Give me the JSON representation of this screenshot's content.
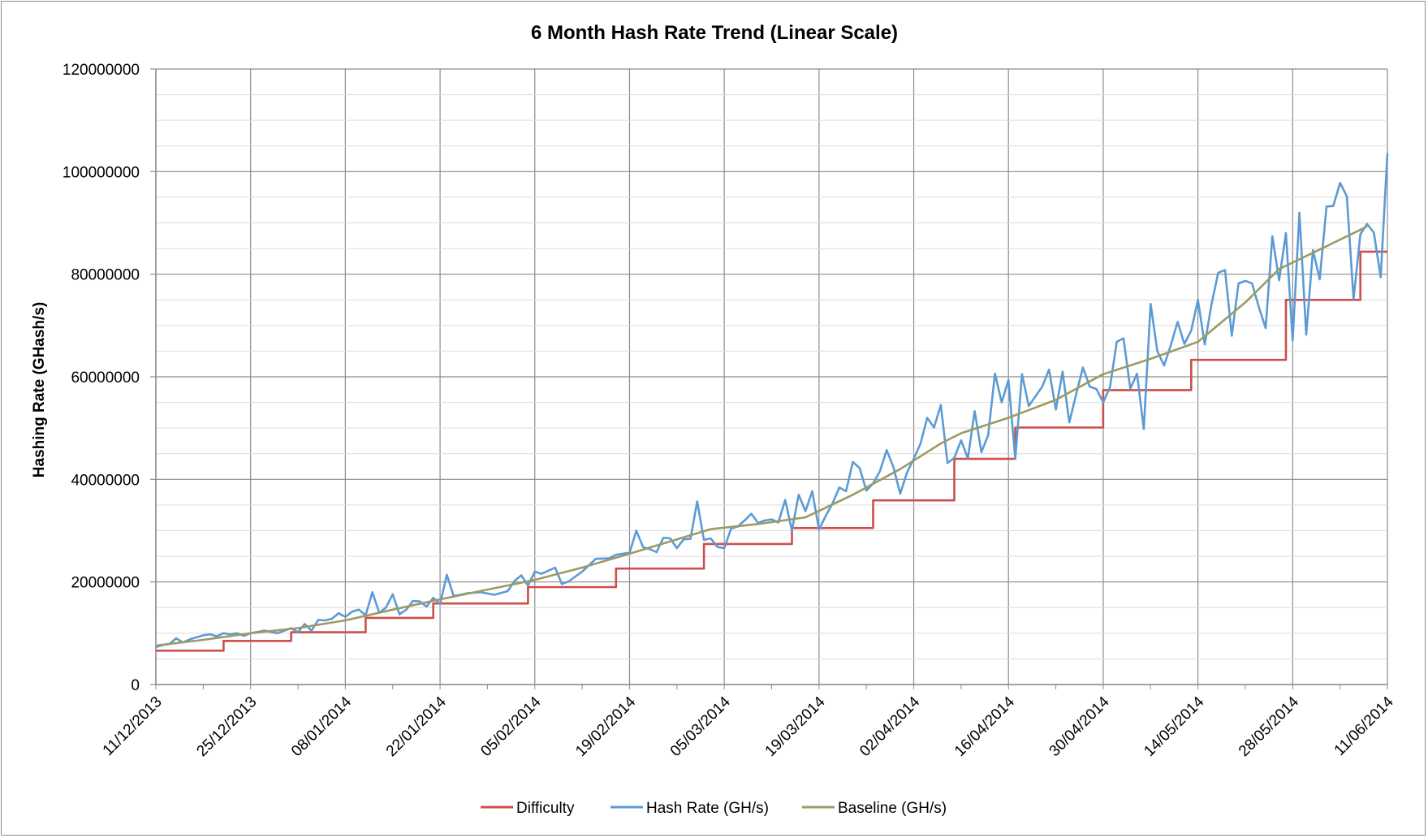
{
  "chart_data": {
    "type": "line",
    "title": "6 Month Hash Rate Trend (Linear Scale)",
    "ylabel": "Hashing Rate (GHash/s)",
    "xlabel": "",
    "ylim": [
      0,
      120000000
    ],
    "y_ticks": [
      "0",
      "20000000",
      "40000000",
      "60000000",
      "80000000",
      "100000000",
      "120000000"
    ],
    "x_range": [
      "2013-12-11",
      "2014-06-11"
    ],
    "x_tick_dates": [
      "2013-12-11",
      "2013-12-25",
      "2014-01-08",
      "2014-01-22",
      "2014-02-05",
      "2014-02-19",
      "2014-03-05",
      "2014-03-19",
      "2014-04-02",
      "2014-04-16",
      "2014-04-30",
      "2014-05-14",
      "2014-05-28",
      "2014-06-11"
    ],
    "x_tick_labels": [
      "11/12/2013",
      "25/12/2013",
      "08/01/2014",
      "22/01/2014",
      "05/02/2014",
      "19/02/2014",
      "05/03/2014",
      "19/03/2014",
      "02/04/2014",
      "16/04/2014",
      "30/04/2014",
      "14/05/2014",
      "28/05/2014",
      "11/06/2014"
    ],
    "grid": true,
    "legend_position": "bottom",
    "series": [
      {
        "name": "Difficulty",
        "color": "#cc4f4b",
        "step": true,
        "x": [
          "2013-12-11",
          "2013-12-21",
          "2013-12-31",
          "2014-01-11",
          "2014-01-21",
          "2014-02-04",
          "2014-02-17",
          "2014-03-02",
          "2014-03-15",
          "2014-03-27",
          "2014-04-08",
          "2014-04-17",
          "2014-04-30",
          "2014-05-13",
          "2014-05-27",
          "2014-06-07",
          "2014-06-11"
        ],
        "values": [
          6600000,
          8500000,
          10200000,
          13000000,
          15800000,
          19000000,
          22600000,
          27400000,
          30500000,
          35900000,
          44000000,
          50100000,
          57400000,
          63300000,
          75000000,
          84400000,
          84400000
        ]
      },
      {
        "name": "Hash Rate (GH/s)",
        "color": "#5b9bd5",
        "x": [
          "2013-12-11",
          "2013-12-12",
          "2013-12-13",
          "2013-12-14",
          "2013-12-15",
          "2013-12-16",
          "2013-12-17",
          "2013-12-18",
          "2013-12-19",
          "2013-12-20",
          "2013-12-21",
          "2013-12-22",
          "2013-12-23",
          "2013-12-24",
          "2013-12-25",
          "2013-12-27",
          "2013-12-29",
          "2013-12-31",
          "2014-01-01",
          "2014-01-02",
          "2014-01-03",
          "2014-01-04",
          "2014-01-05",
          "2014-01-06",
          "2014-01-07",
          "2014-01-08",
          "2014-01-09",
          "2014-01-10",
          "2014-01-11",
          "2014-01-12",
          "2014-01-13",
          "2014-01-14",
          "2014-01-15",
          "2014-01-16",
          "2014-01-17",
          "2014-01-18",
          "2014-01-19",
          "2014-01-20",
          "2014-01-21",
          "2014-01-22",
          "2014-01-23",
          "2014-01-24",
          "2014-01-25",
          "2014-01-26",
          "2014-01-28",
          "2014-01-30",
          "2014-02-01",
          "2014-02-02",
          "2014-02-03",
          "2014-02-04",
          "2014-02-05",
          "2014-02-06",
          "2014-02-08",
          "2014-02-09",
          "2014-02-10",
          "2014-02-12",
          "2014-02-14",
          "2014-02-16",
          "2014-02-17",
          "2014-02-19",
          "2014-02-20",
          "2014-02-21",
          "2014-02-22",
          "2014-02-23",
          "2014-02-24",
          "2014-02-25",
          "2014-02-26",
          "2014-02-27",
          "2014-02-28",
          "2014-03-01",
          "2014-03-02",
          "2014-03-03",
          "2014-03-04",
          "2014-03-05",
          "2014-03-06",
          "2014-03-07",
          "2014-03-08",
          "2014-03-09",
          "2014-03-10",
          "2014-03-11",
          "2014-03-12",
          "2014-03-13",
          "2014-03-14",
          "2014-03-15",
          "2014-03-16",
          "2014-03-17",
          "2014-03-18",
          "2014-03-19",
          "2014-03-20",
          "2014-03-21",
          "2014-03-22",
          "2014-03-23",
          "2014-03-24",
          "2014-03-25",
          "2014-03-26",
          "2014-03-27",
          "2014-03-28",
          "2014-03-29",
          "2014-03-30",
          "2014-03-31",
          "2014-04-01",
          "2014-04-02",
          "2014-04-03",
          "2014-04-04",
          "2014-04-05",
          "2014-04-06",
          "2014-04-07",
          "2014-04-08",
          "2014-04-09",
          "2014-04-10",
          "2014-04-11",
          "2014-04-12",
          "2014-04-13",
          "2014-04-14",
          "2014-04-15",
          "2014-04-16",
          "2014-04-17",
          "2014-04-18",
          "2014-04-19",
          "2014-04-21",
          "2014-04-22",
          "2014-04-23",
          "2014-04-24",
          "2014-04-25",
          "2014-04-26",
          "2014-04-27",
          "2014-04-28",
          "2014-04-29",
          "2014-04-30",
          "2014-05-01",
          "2014-05-02",
          "2014-05-03",
          "2014-05-04",
          "2014-05-05",
          "2014-05-06",
          "2014-05-07",
          "2014-05-08",
          "2014-05-09",
          "2014-05-10",
          "2014-05-11",
          "2014-05-12",
          "2014-05-13",
          "2014-05-14",
          "2014-05-15",
          "2014-05-16",
          "2014-05-17",
          "2014-05-18",
          "2014-05-19",
          "2014-05-20",
          "2014-05-21",
          "2014-05-22",
          "2014-05-23",
          "2014-05-24",
          "2014-05-25",
          "2014-05-26",
          "2014-05-27",
          "2014-05-28",
          "2014-05-29",
          "2014-05-30",
          "2014-05-31",
          "2014-06-01",
          "2014-06-02",
          "2014-06-03",
          "2014-06-04",
          "2014-06-05",
          "2014-06-06",
          "2014-06-07",
          "2014-06-08",
          "2014-06-09",
          "2014-06-10",
          "2014-06-11"
        ],
        "values": [
          7300000,
          7700000,
          7900000,
          9000000,
          8200000,
          8800000,
          9200000,
          9600000,
          9800000,
          9400000,
          10000000,
          9800000,
          10000000,
          9500000,
          10000000,
          10500000,
          10000000,
          11000000,
          10200000,
          11800000,
          10500000,
          12600000,
          12500000,
          12800000,
          13900000,
          13200000,
          14200000,
          14600000,
          13500000,
          18000000,
          14000000,
          15000000,
          17600000,
          13700000,
          14600000,
          16300000,
          16200000,
          15200000,
          16900000,
          15700000,
          21400000,
          17300000,
          17500000,
          17800000,
          18000000,
          17500000,
          18200000,
          20200000,
          21300000,
          19300000,
          22000000,
          21600000,
          22800000,
          19600000,
          20100000,
          22000000,
          24500000,
          24600000,
          25300000,
          25700000,
          30000000,
          26800000,
          26400000,
          25800000,
          28600000,
          28500000,
          26600000,
          28300000,
          28400000,
          35700000,
          28200000,
          28500000,
          26800000,
          26600000,
          30400000,
          30800000,
          32000000,
          33300000,
          31500000,
          32000000,
          32200000,
          31600000,
          36000000,
          30000000,
          37000000,
          33800000,
          37700000,
          30200000,
          32900000,
          35300000,
          38400000,
          37700000,
          43400000,
          42200000,
          37800000,
          39200000,
          41600000,
          45700000,
          42400000,
          37200000,
          41300000,
          44000000,
          47000000,
          52000000,
          50100000,
          54500000,
          43200000,
          44200000,
          47600000,
          44100000,
          53300000,
          45300000,
          48600000,
          60600000,
          55000000,
          59400000,
          44000000,
          60500000,
          54300000,
          58100000,
          61400000,
          53600000,
          61000000,
          51100000,
          56600000,
          61800000,
          58100000,
          57600000,
          55000000,
          58000000,
          66800000,
          67500000,
          57700000,
          60600000,
          49800000,
          74200000,
          65000000,
          62200000,
          66200000,
          70700000,
          66400000,
          69000000,
          75000000,
          66300000,
          74100000,
          80300000,
          80800000,
          68000000,
          78200000,
          78700000,
          78200000,
          73600000,
          69500000,
          87400000,
          78800000,
          88000000,
          67100000,
          92000000,
          68200000,
          84700000,
          79000000,
          93200000,
          93300000,
          97800000,
          95200000,
          75100000,
          87800000,
          89800000,
          88100000,
          79400000,
          103600000
        ]
      },
      {
        "name": "Baseline (GH/s)",
        "color": "#9c9b63",
        "x": [
          "2013-12-11",
          "2013-12-18",
          "2013-12-25",
          "2014-01-01",
          "2014-01-08",
          "2014-01-15",
          "2014-01-22",
          "2014-01-29",
          "2014-02-05",
          "2014-02-12",
          "2014-02-19",
          "2014-02-26",
          "2014-03-03",
          "2014-03-10",
          "2014-03-17",
          "2014-03-24",
          "2014-03-31",
          "2014-04-06",
          "2014-04-09",
          "2014-04-16",
          "2014-04-23",
          "2014-04-30",
          "2014-05-07",
          "2014-05-14",
          "2014-05-21",
          "2014-05-26",
          "2014-06-01",
          "2014-06-08"
        ],
        "values": [
          7600000,
          8700000,
          10000000,
          11000000,
          12500000,
          14600000,
          16600000,
          18500000,
          20400000,
          22800000,
          25500000,
          28300000,
          30300000,
          31300000,
          32600000,
          37000000,
          42000000,
          47000000,
          49000000,
          52000000,
          55500000,
          60500000,
          63500000,
          66800000,
          74500000,
          81000000,
          84800000,
          89300000
        ]
      }
    ]
  }
}
